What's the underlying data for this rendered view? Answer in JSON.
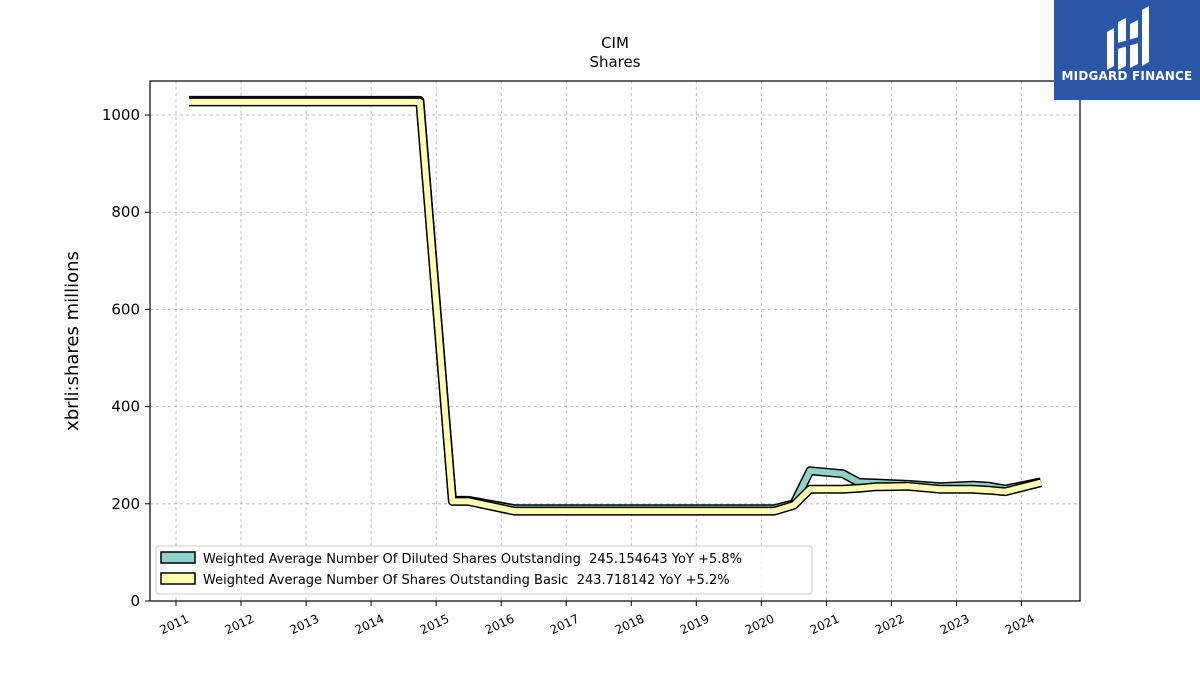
{
  "chart_data": {
    "type": "line",
    "title": "CIM",
    "subtitle": "Shares",
    "xlabel": "",
    "ylabel": "xbrli:shares millions",
    "xlim": [
      2010.6,
      2024.9
    ],
    "ylim": [
      0,
      1070
    ],
    "x_ticks": [
      2011,
      2012,
      2013,
      2014,
      2015,
      2016,
      2017,
      2018,
      2019,
      2020,
      2021,
      2022,
      2023,
      2024
    ],
    "y_ticks": [
      0,
      200,
      400,
      600,
      800,
      1000
    ],
    "grid": true,
    "legend_position": "lower-left",
    "series": [
      {
        "name": "Weighted Average Number Of Diluted Shares Outstanding",
        "legend_label": "Weighted Average Number Of Diluted Shares Outstanding  245.154643 YoY +5.8%",
        "color": "#8dd3c7",
        "x": [
          2011.2,
          2014.75,
          2015.25,
          2015.5,
          2016.2,
          2019.75,
          2020.2,
          2020.5,
          2020.75,
          2021.25,
          2021.5,
          2022.25,
          2022.75,
          2023.25,
          2023.5,
          2023.75,
          2024.3
        ],
        "y": [
          1030,
          1030,
          207,
          207,
          190,
          190,
          190,
          200,
          268,
          262,
          244,
          240,
          235,
          238,
          236,
          230,
          245.154643
        ]
      },
      {
        "name": "Weighted Average Number Of Shares Outstanding Basic",
        "legend_label": "Weighted Average Number Of Shares Outstanding Basic  243.718142 YoY +5.2%",
        "color": "#ffffb3",
        "x": [
          2011.2,
          2014.75,
          2015.25,
          2015.5,
          2016.2,
          2019.75,
          2020.2,
          2020.5,
          2020.75,
          2021.25,
          2021.5,
          2021.75,
          2022.25,
          2022.75,
          2023.25,
          2023.5,
          2023.75,
          2024.3
        ],
        "y": [
          1027,
          1027,
          205,
          205,
          185,
          185,
          185,
          197,
          230,
          230,
          232,
          235,
          236,
          230,
          230,
          228,
          225,
          243.718142
        ]
      }
    ]
  },
  "logo": {
    "name": "MIDGARD FINANCE"
  }
}
